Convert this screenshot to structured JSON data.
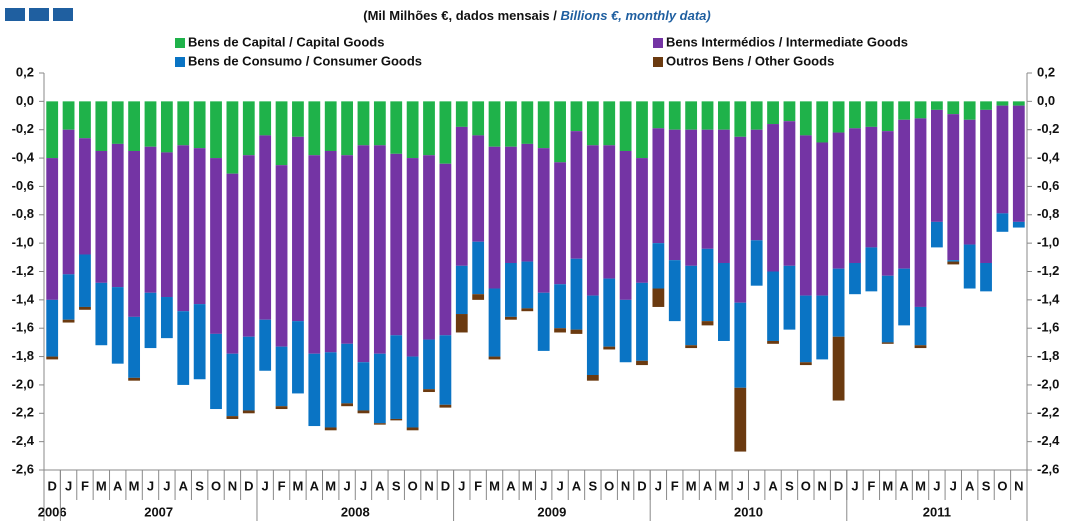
{
  "chart_data": {
    "type": "stacked_bar",
    "title": "(Mil Milhões €, dados mensais /",
    "title_en": "Billions €, monthly data)",
    "categories": [
      "D",
      "J",
      "F",
      "M",
      "A",
      "M",
      "J",
      "J",
      "A",
      "S",
      "O",
      "N",
      "D",
      "J",
      "F",
      "M",
      "A",
      "M",
      "J",
      "J",
      "A",
      "S",
      "O",
      "N",
      "D",
      "J",
      "F",
      "M",
      "A",
      "M",
      "J",
      "J",
      "A",
      "S",
      "O",
      "N",
      "D",
      "J",
      "F",
      "M",
      "A",
      "M",
      "J",
      "J",
      "A",
      "S",
      "O",
      "N",
      "D",
      "J",
      "F",
      "M",
      "A",
      "M",
      "J",
      "J",
      "A",
      "S",
      "O",
      "N"
    ],
    "year_groups": [
      {
        "label": "2006",
        "span": 1
      },
      {
        "label": "2007",
        "span": 12
      },
      {
        "label": "2008",
        "span": 12
      },
      {
        "label": "2009",
        "span": 12
      },
      {
        "label": "2010",
        "span": 12
      },
      {
        "label": "2011",
        "span": 11
      }
    ],
    "series": [
      {
        "name": "Bens de Capital / Capital Goods",
        "color": "#1fb24a",
        "values": [
          -0.4,
          -0.2,
          -0.26,
          -0.35,
          -0.3,
          -0.35,
          -0.32,
          -0.36,
          -0.31,
          -0.33,
          -0.4,
          -0.51,
          -0.38,
          -0.24,
          -0.45,
          -0.25,
          -0.38,
          -0.35,
          -0.38,
          -0.31,
          -0.31,
          -0.37,
          -0.4,
          -0.38,
          -0.44,
          -0.18,
          -0.24,
          -0.32,
          -0.32,
          -0.3,
          -0.33,
          -0.43,
          -0.21,
          -0.31,
          -0.31,
          -0.35,
          -0.4,
          -0.19,
          -0.2,
          -0.2,
          -0.2,
          -0.2,
          -0.25,
          -0.2,
          -0.16,
          -0.14,
          -0.24,
          -0.29,
          -0.22,
          -0.19,
          -0.18,
          -0.21,
          -0.13,
          -0.12,
          -0.06,
          -0.09,
          -0.13,
          -0.06,
          -0.03,
          -0.03
        ]
      },
      {
        "name": "Bens Intermédios / Intermediate Goods",
        "color": "#7434a4",
        "values": [
          -1.0,
          -1.02,
          -0.82,
          -0.93,
          -1.01,
          -1.17,
          -1.03,
          -1.02,
          -1.17,
          -1.1,
          -1.24,
          -1.27,
          -1.28,
          -1.3,
          -1.28,
          -1.3,
          -1.4,
          -1.42,
          -1.33,
          -1.53,
          -1.47,
          -1.28,
          -1.4,
          -1.3,
          -1.21,
          -0.98,
          -0.75,
          -1.0,
          -0.82,
          -0.83,
          -1.02,
          -0.86,
          -0.9,
          -1.06,
          -0.94,
          -1.05,
          -0.88,
          -0.81,
          -0.92,
          -0.96,
          -0.84,
          -0.94,
          -1.17,
          -0.78,
          -1.04,
          -1.02,
          -1.13,
          -1.08,
          -0.96,
          -0.95,
          -0.85,
          -1.02,
          -1.05,
          -1.33,
          -0.79,
          -1.03,
          -0.88,
          -1.08,
          -0.76,
          -0.82
        ]
      },
      {
        "name": "Bens de Consumo / Consumer Goods",
        "color": "#0a74c4",
        "values": [
          -0.4,
          -0.32,
          -0.37,
          -0.44,
          -0.54,
          -0.43,
          -0.39,
          -0.29,
          -0.52,
          -0.53,
          -0.53,
          -0.44,
          -0.52,
          -0.36,
          -0.42,
          -0.51,
          -0.51,
          -0.53,
          -0.42,
          -0.34,
          -0.49,
          -0.59,
          -0.5,
          -0.35,
          -0.49,
          -0.34,
          -0.37,
          -0.48,
          -0.38,
          -0.33,
          -0.41,
          -0.31,
          -0.5,
          -0.56,
          -0.48,
          -0.44,
          -0.55,
          -0.32,
          -0.43,
          -0.56,
          -0.51,
          -0.55,
          -0.6,
          -0.32,
          -0.49,
          -0.45,
          -0.47,
          -0.45,
          -0.48,
          -0.22,
          -0.31,
          -0.47,
          -0.4,
          -0.27,
          -0.18,
          -0.01,
          -0.31,
          -0.2,
          -0.13,
          -0.04
        ]
      },
      {
        "name": "Outros Bens / Other Goods",
        "color": "#6b3a10",
        "values": [
          -0.02,
          -0.02,
          -0.02,
          0,
          0,
          -0.02,
          0,
          0,
          0,
          0,
          0,
          -0.02,
          -0.02,
          0,
          -0.02,
          0,
          0,
          -0.02,
          -0.02,
          -0.02,
          -0.01,
          -0.01,
          -0.02,
          -0.02,
          -0.02,
          -0.13,
          -0.04,
          -0.02,
          -0.02,
          -0.02,
          0,
          -0.03,
          -0.03,
          -0.04,
          -0.02,
          0,
          -0.03,
          -0.13,
          0,
          -0.02,
          -0.03,
          0,
          -0.45,
          0,
          -0.02,
          0,
          -0.02,
          0,
          -0.45,
          0,
          0,
          -0.01,
          0,
          -0.02,
          0,
          -0.02,
          0,
          0,
          0,
          0
        ]
      }
    ],
    "ylim": [
      -2.6,
      0.2
    ],
    "yticks": [
      {
        "value": 0.2,
        "label": "0,2"
      },
      {
        "value": 0,
        "label": "0,0"
      },
      {
        "value": -0.2,
        "label": "-0,2"
      },
      {
        "value": -0.4,
        "label": "-0,4"
      },
      {
        "value": -0.6,
        "label": "-0,6"
      },
      {
        "value": -0.8,
        "label": "-0,8"
      },
      {
        "value": -1.0,
        "label": "-1,0"
      },
      {
        "value": -1.2,
        "label": "-1,2"
      },
      {
        "value": -1.4,
        "label": "-1,4"
      },
      {
        "value": -1.6,
        "label": "-1,6"
      },
      {
        "value": -1.8,
        "label": "-1,8"
      },
      {
        "value": -2.0,
        "label": "-2,0"
      },
      {
        "value": -2.2,
        "label": "-2,2"
      },
      {
        "value": -2.4,
        "label": "-2,4"
      },
      {
        "value": -2.6,
        "label": "-2,6"
      }
    ],
    "grid": false
  }
}
